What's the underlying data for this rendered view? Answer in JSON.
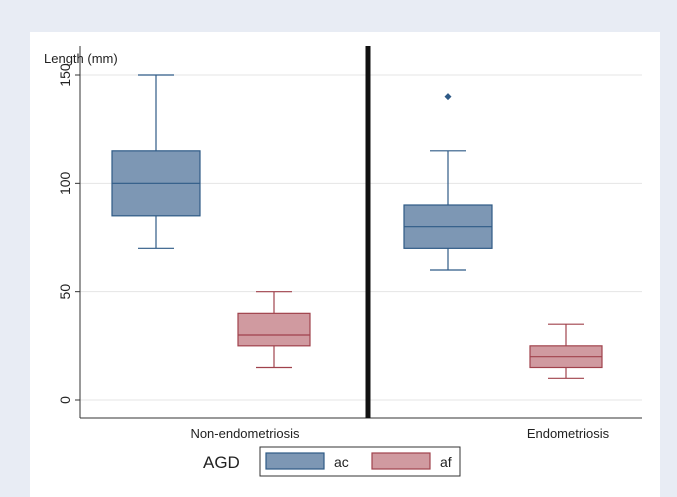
{
  "chart_data": {
    "type": "box",
    "ylabel": "Length (mm)",
    "ylim": [
      -5,
      153
    ],
    "yticks": [
      0,
      50,
      100,
      150
    ],
    "ytick_labels": [
      "0",
      "50",
      "100",
      "150"
    ],
    "grid": true,
    "groups": [
      "Non-endometriosis",
      "Endometriosis"
    ],
    "series": [
      {
        "name": "ac",
        "color": "#7d97b4",
        "stroke": "#2e5a86",
        "boxes": [
          {
            "group": "Non-endometriosis",
            "min": 70,
            "q1": 85,
            "median": 100,
            "q3": 115,
            "max": 150,
            "outliers": []
          },
          {
            "group": "Endometriosis",
            "min": 60,
            "q1": 70,
            "median": 80,
            "q3": 90,
            "max": 115,
            "outliers": [
              140
            ]
          }
        ]
      },
      {
        "name": "af",
        "color": "#d09aa0",
        "stroke": "#a0424c",
        "boxes": [
          {
            "group": "Non-endometriosis",
            "min": 15,
            "q1": 25,
            "median": 30,
            "q3": 40,
            "max": 50,
            "outliers": []
          },
          {
            "group": "Endometriosis",
            "min": 10,
            "q1": 15,
            "median": 20,
            "q3": 25,
            "max": 35,
            "outliers": []
          }
        ]
      }
    ],
    "legend": {
      "title": "AGD",
      "placement": "bottom"
    }
  }
}
